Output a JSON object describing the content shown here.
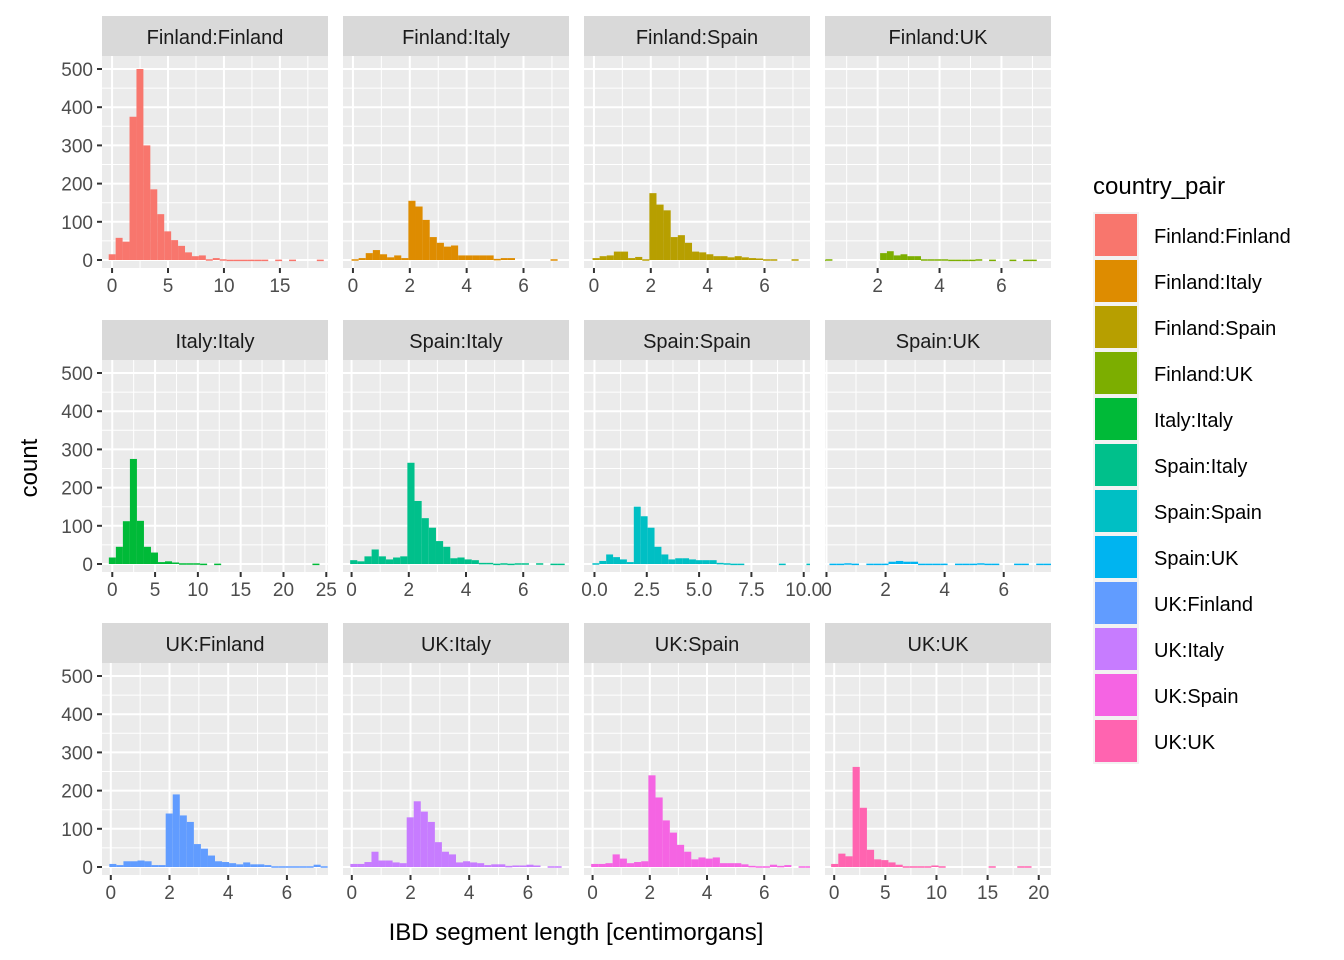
{
  "chart_data": {
    "type": "bar",
    "subtype": "faceted-histogram",
    "title": "",
    "xlabel": "IBD segment length [centimorgans]",
    "ylabel": "count",
    "ylim": [
      0,
      540
    ],
    "y_ticks": [
      0,
      100,
      200,
      300,
      400,
      500
    ],
    "grid": true,
    "legend": {
      "title": "country_pair",
      "placement": "right",
      "entries": [
        {
          "label": "Finland:Finland",
          "color": "#F8766D"
        },
        {
          "label": "Finland:Italy",
          "color": "#DE8C00"
        },
        {
          "label": "Finland:Spain",
          "color": "#B79F00"
        },
        {
          "label": "Finland:UK",
          "color": "#7CAE00"
        },
        {
          "label": "Italy:Italy",
          "color": "#00BA38"
        },
        {
          "label": "Spain:Italy",
          "color": "#00C08B"
        },
        {
          "label": "Spain:Spain",
          "color": "#00BFC4"
        },
        {
          "label": "Spain:UK",
          "color": "#00B4F0"
        },
        {
          "label": "UK:Finland",
          "color": "#619CFF"
        },
        {
          "label": "UK:Italy",
          "color": "#C77CFF"
        },
        {
          "label": "UK:Spain",
          "color": "#F564E3"
        },
        {
          "label": "UK:UK",
          "color": "#FF64B0"
        }
      ]
    },
    "panels": [
      {
        "label": "Finland:Finland",
        "color": "#F8766D",
        "xlim": [
          -0.9,
          19.3
        ],
        "x_ticks": [
          "0",
          "5",
          "10",
          "15"
        ],
        "x_tick_values": [
          0,
          5,
          10,
          15
        ],
        "bin_start": -0.3,
        "bin_width": 0.62,
        "counts": [
          15,
          58,
          48,
          375,
          500,
          300,
          185,
          120,
          75,
          52,
          37,
          20,
          10,
          12,
          2,
          5,
          2,
          1,
          1,
          1,
          1,
          1,
          1,
          0,
          1,
          0,
          1,
          0,
          0,
          0,
          1
        ]
      },
      {
        "label": "Finland:Italy",
        "color": "#DE8C00",
        "xlim": [
          -0.35,
          7.6
        ],
        "x_ticks": [
          "0",
          "2",
          "4",
          "6"
        ],
        "x_tick_values": [
          0,
          2,
          4,
          6
        ],
        "bin_start": -0.05,
        "bin_width": 0.25,
        "counts": [
          2,
          5,
          18,
          26,
          15,
          7,
          12,
          5,
          155,
          140,
          105,
          60,
          45,
          35,
          38,
          12,
          12,
          12,
          12,
          12,
          3,
          5,
          5,
          0,
          0,
          0,
          0,
          0,
          2,
          0
        ]
      },
      {
        "label": "Finland:Spain",
        "color": "#B79F00",
        "xlim": [
          -0.35,
          7.6
        ],
        "x_ticks": [
          "0",
          "2",
          "4",
          "6"
        ],
        "x_tick_values": [
          0,
          2,
          4,
          6
        ],
        "bin_start": -0.05,
        "bin_width": 0.25,
        "counts": [
          5,
          10,
          12,
          22,
          22,
          5,
          8,
          2,
          175,
          145,
          130,
          60,
          65,
          45,
          22,
          20,
          15,
          10,
          10,
          7,
          10,
          7,
          5,
          4,
          2,
          2,
          0,
          0,
          2,
          0
        ]
      },
      {
        "label": "Finland:UK",
        "color": "#7CAE00",
        "xlim": [
          0.3,
          7.6
        ],
        "x_ticks": [
          "2",
          "4",
          "6"
        ],
        "x_tick_values": [
          2,
          4,
          6
        ],
        "bin_start": 0.1,
        "bin_width": 0.22,
        "counts": [
          1,
          2,
          0,
          0,
          0,
          0,
          0,
          0,
          0,
          18,
          23,
          12,
          15,
          10,
          10,
          2,
          2,
          2,
          2,
          1,
          1,
          1,
          1,
          2,
          0,
          1,
          0,
          0,
          1,
          0,
          1,
          1,
          0,
          0,
          0,
          0,
          0,
          1,
          0
        ]
      },
      {
        "label": "Italy:Italy",
        "color": "#00BA38",
        "xlim": [
          -1.2,
          25.2
        ],
        "x_ticks": [
          "0",
          "5",
          "10",
          "15",
          "20",
          "25"
        ],
        "x_tick_values": [
          0,
          5,
          10,
          15,
          20,
          25
        ],
        "bin_start": -0.4,
        "bin_width": 0.82,
        "counts": [
          17,
          45,
          112,
          275,
          113,
          45,
          30,
          5,
          7,
          4,
          2,
          2,
          2,
          1,
          0,
          1,
          0,
          0,
          0,
          0,
          0,
          0,
          0,
          0,
          0,
          0,
          0,
          0,
          0,
          1
        ]
      },
      {
        "label": "Spain:Italy",
        "color": "#00C08B",
        "xlim": [
          -0.3,
          7.6
        ],
        "x_ticks": [
          "0",
          "2",
          "4",
          "6"
        ],
        "x_tick_values": [
          0,
          2,
          4,
          6
        ],
        "bin_start": -0.05,
        "bin_width": 0.25,
        "counts": [
          10,
          7,
          20,
          38,
          20,
          12,
          17,
          20,
          265,
          165,
          120,
          95,
          60,
          45,
          15,
          17,
          12,
          10,
          3,
          3,
          1,
          2,
          1,
          2,
          2,
          0,
          2,
          0,
          1,
          1
        ]
      },
      {
        "label": "Spain:Spain",
        "color": "#00BFC4",
        "xlim": [
          -0.5,
          10.3
        ],
        "x_ticks": [
          "0.0",
          "2.5",
          "5.0",
          "7.5",
          "10.0"
        ],
        "x_tick_values": [
          0,
          2.5,
          5,
          7.5,
          10
        ],
        "bin_start": -0.1,
        "bin_width": 0.33,
        "counts": [
          2,
          8,
          25,
          18,
          12,
          5,
          150,
          125,
          95,
          45,
          25,
          12,
          15,
          15,
          12,
          10,
          10,
          10,
          3,
          2,
          1,
          1,
          0,
          0,
          0,
          0,
          0,
          1,
          0,
          0,
          0,
          1,
          0
        ]
      },
      {
        "label": "Spain:UK",
        "color": "#00B4F0",
        "xlim": [
          -0.05,
          7.6
        ],
        "x_ticks": [
          "0",
          "2",
          "4",
          "6"
        ],
        "x_tick_values": [
          0,
          2,
          4,
          6
        ],
        "bin_start": 0.1,
        "bin_width": 0.25,
        "counts": [
          1,
          1,
          2,
          1,
          0,
          1,
          1,
          1,
          6,
          8,
          6,
          6,
          1,
          1,
          1,
          1,
          0,
          1,
          1,
          1,
          2,
          1,
          1,
          0,
          0,
          1,
          1,
          0,
          1,
          1
        ]
      },
      {
        "label": "UK:Finland",
        "color": "#619CFF",
        "xlim": [
          -0.3,
          7.4
        ],
        "x_ticks": [
          "0",
          "2",
          "4",
          "6"
        ],
        "x_tick_values": [
          0,
          2,
          4,
          6
        ],
        "bin_start": -0.05,
        "bin_width": 0.24,
        "counts": [
          8,
          5,
          15,
          15,
          17,
          15,
          5,
          5,
          140,
          190,
          135,
          118,
          60,
          48,
          30,
          15,
          13,
          10,
          7,
          12,
          7,
          7,
          5,
          2,
          2,
          2,
          2,
          2,
          2,
          6,
          2
        ]
      },
      {
        "label": "UK:Italy",
        "color": "#C77CFF",
        "xlim": [
          -0.3,
          7.4
        ],
        "x_ticks": [
          "0",
          "2",
          "4",
          "6"
        ],
        "x_tick_values": [
          0,
          2,
          4,
          6
        ],
        "bin_start": -0.05,
        "bin_width": 0.24,
        "counts": [
          8,
          8,
          13,
          40,
          17,
          17,
          12,
          10,
          130,
          172,
          145,
          118,
          65,
          40,
          33,
          12,
          15,
          12,
          10,
          5,
          7,
          7,
          3,
          4,
          4,
          6,
          4,
          0,
          2,
          2
        ]
      },
      {
        "label": "UK:Spain",
        "color": "#F564E3",
        "xlim": [
          -0.3,
          7.6
        ],
        "x_ticks": [
          "0",
          "2",
          "4",
          "6"
        ],
        "x_tick_values": [
          0,
          2,
          4,
          6
        ],
        "bin_start": -0.05,
        "bin_width": 0.25,
        "counts": [
          8,
          8,
          10,
          33,
          22,
          10,
          13,
          15,
          240,
          182,
          122,
          90,
          58,
          40,
          20,
          25,
          22,
          25,
          10,
          10,
          10,
          7,
          3,
          2,
          2,
          6,
          3,
          5,
          0,
          2,
          2
        ]
      },
      {
        "label": "UK:UK",
        "color": "#FF64B0",
        "xlim": [
          -0.9,
          21.2
        ],
        "x_ticks": [
          "0",
          "5",
          "10",
          "15",
          "20"
        ],
        "x_tick_values": [
          0,
          5,
          10,
          15,
          20
        ],
        "bin_start": -0.3,
        "bin_width": 0.7,
        "counts": [
          8,
          35,
          28,
          262,
          155,
          45,
          20,
          18,
          12,
          6,
          2,
          2,
          2,
          2,
          4,
          2,
          0,
          0,
          0,
          0,
          0,
          0,
          2,
          0,
          0,
          0,
          2,
          2,
          0,
          0,
          0,
          0,
          0,
          2
        ]
      }
    ]
  }
}
